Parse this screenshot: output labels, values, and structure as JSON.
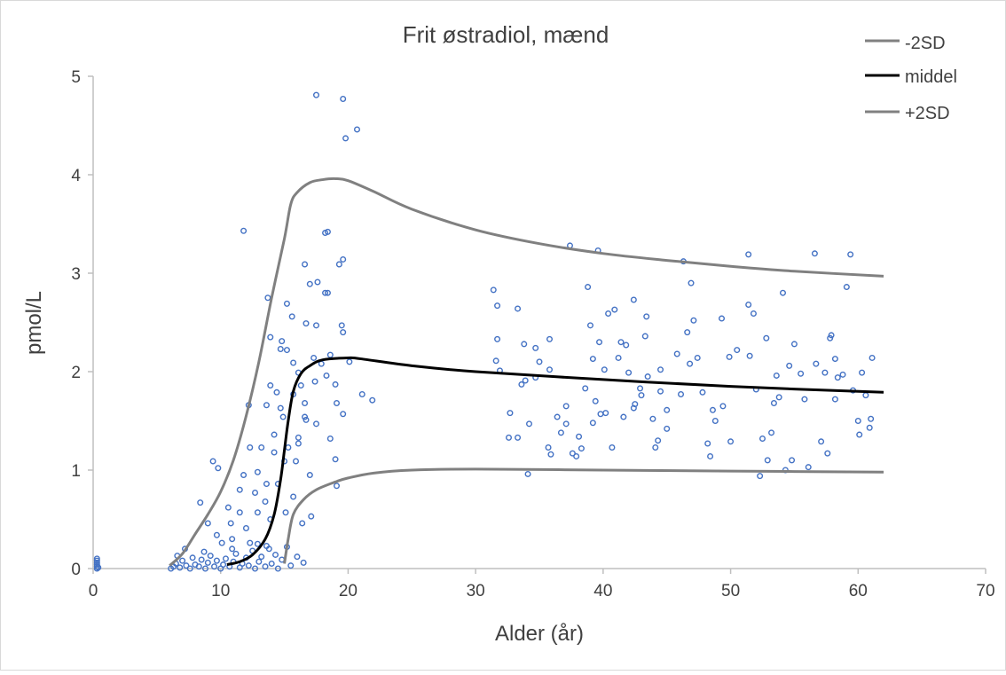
{
  "chart_data": {
    "type": "scatter",
    "title": "Frit østradiol, mænd",
    "xlabel": "Alder (år)",
    "ylabel": "pmol/L",
    "xlim": [
      0,
      70
    ],
    "ylim": [
      0,
      5
    ],
    "x_ticks": [
      "0",
      "10",
      "20",
      "30",
      "40",
      "50",
      "60",
      "70"
    ],
    "y_ticks": [
      "0",
      "1",
      "2",
      "3",
      "4",
      "5"
    ],
    "x_tick_values": [
      0,
      10,
      20,
      30,
      40,
      50,
      60,
      70
    ],
    "y_tick_values": [
      0,
      1,
      2,
      3,
      4,
      5
    ],
    "grid": false,
    "legend_placement": "top-right",
    "colors": {
      "points": "#4472C4",
      "sd": "#808080",
      "mean": "#000000",
      "axis": "#BFBFBF"
    },
    "lines": [
      {
        "name": "-2SD",
        "color": "#808080",
        "points": [
          [
            15,
            0.05
          ],
          [
            15.3,
            0.3
          ],
          [
            15.7,
            0.55
          ],
          [
            16.5,
            0.7
          ],
          [
            17.5,
            0.8
          ],
          [
            19,
            0.88
          ],
          [
            20,
            0.92
          ],
          [
            22,
            0.97
          ],
          [
            25,
            1.0
          ],
          [
            30,
            1.01
          ],
          [
            40,
            1.0
          ],
          [
            50,
            0.99
          ],
          [
            62,
            0.98
          ]
        ]
      },
      {
        "name": "middel",
        "color": "#000000",
        "points": [
          [
            10.5,
            0.04
          ],
          [
            11.5,
            0.07
          ],
          [
            12.5,
            0.14
          ],
          [
            13.5,
            0.3
          ],
          [
            14.2,
            0.55
          ],
          [
            14.7,
            0.9
          ],
          [
            15,
            1.2
          ],
          [
            15.3,
            1.5
          ],
          [
            15.7,
            1.8
          ],
          [
            16.3,
            1.98
          ],
          [
            17,
            2.06
          ],
          [
            18,
            2.12
          ],
          [
            20,
            2.14
          ],
          [
            21,
            2.13
          ],
          [
            25,
            2.06
          ],
          [
            30,
            2.0
          ],
          [
            40,
            1.92
          ],
          [
            50,
            1.85
          ],
          [
            62,
            1.79
          ]
        ]
      },
      {
        "name": "+2SD",
        "color": "#808080",
        "points": [
          [
            6,
            0.03
          ],
          [
            7,
            0.15
          ],
          [
            8,
            0.35
          ],
          [
            9,
            0.55
          ],
          [
            10,
            0.78
          ],
          [
            11,
            1.1
          ],
          [
            12,
            1.55
          ],
          [
            13,
            2.1
          ],
          [
            14,
            2.75
          ],
          [
            15,
            3.35
          ],
          [
            15.5,
            3.7
          ],
          [
            16,
            3.82
          ],
          [
            17,
            3.92
          ],
          [
            18,
            3.95
          ],
          [
            19,
            3.96
          ],
          [
            20,
            3.94
          ],
          [
            22,
            3.83
          ],
          [
            25,
            3.65
          ],
          [
            30,
            3.44
          ],
          [
            35,
            3.3
          ],
          [
            40,
            3.2
          ],
          [
            45,
            3.13
          ],
          [
            50,
            3.07
          ],
          [
            55,
            3.02
          ],
          [
            62,
            2.97
          ]
        ]
      }
    ],
    "points": [
      [
        0.3,
        0.0
      ],
      [
        0.3,
        0.02
      ],
      [
        0.3,
        0.04
      ],
      [
        0.3,
        0.06
      ],
      [
        0.3,
        0.08
      ],
      [
        0.3,
        0.1
      ],
      [
        0.4,
        0.01
      ],
      [
        6.1,
        0.0
      ],
      [
        6.3,
        0.02
      ],
      [
        6.5,
        0.05
      ],
      [
        6.8,
        0.01
      ],
      [
        7.0,
        0.08
      ],
      [
        7.3,
        0.03
      ],
      [
        7.6,
        0.0
      ],
      [
        7.8,
        0.11
      ],
      [
        8.0,
        0.04
      ],
      [
        8.3,
        0.02
      ],
      [
        8.5,
        0.09
      ],
      [
        8.8,
        0.0
      ],
      [
        9.0,
        0.06
      ],
      [
        9.2,
        0.13
      ],
      [
        9.5,
        0.02
      ],
      [
        9.7,
        0.08
      ],
      [
        10.0,
        0.0
      ],
      [
        10.2,
        0.04
      ],
      [
        10.4,
        0.1
      ],
      [
        10.7,
        0.02
      ],
      [
        11.0,
        0.07
      ],
      [
        11.2,
        0.15
      ],
      [
        11.5,
        0.01
      ],
      [
        11.7,
        0.05
      ],
      [
        12.0,
        0.11
      ],
      [
        12.2,
        0.03
      ],
      [
        12.5,
        0.18
      ],
      [
        12.7,
        0.0
      ],
      [
        13.0,
        0.07
      ],
      [
        13.2,
        0.12
      ],
      [
        13.5,
        0.02
      ],
      [
        13.8,
        0.2
      ],
      [
        14.0,
        0.05
      ],
      [
        14.3,
        0.14
      ],
      [
        14.5,
        0.0
      ],
      [
        14.8,
        0.09
      ],
      [
        15.2,
        0.22
      ],
      [
        15.5,
        0.03
      ],
      [
        16.0,
        0.12
      ],
      [
        16.5,
        0.06
      ],
      [
        7.2,
        0.2
      ],
      [
        8.7,
        0.17
      ],
      [
        6.6,
        0.13
      ],
      [
        10.9,
        0.2
      ],
      [
        12.9,
        0.25
      ],
      [
        17.5,
        4.81
      ],
      [
        19.6,
        4.77
      ],
      [
        19.8,
        4.37
      ],
      [
        20.7,
        4.46
      ],
      [
        11.8,
        3.43
      ],
      [
        18.2,
        3.41
      ],
      [
        18.4,
        3.42
      ],
      [
        19.6,
        3.14
      ],
      [
        19.3,
        3.09
      ],
      [
        16.6,
        3.09
      ],
      [
        17.0,
        2.89
      ],
      [
        17.6,
        2.91
      ],
      [
        18.2,
        2.8
      ],
      [
        18.4,
        2.8
      ],
      [
        13.7,
        2.75
      ],
      [
        15.2,
        2.69
      ],
      [
        15.6,
        2.56
      ],
      [
        16.7,
        2.49
      ],
      [
        17.5,
        2.47
      ],
      [
        19.5,
        2.47
      ],
      [
        19.6,
        2.4
      ],
      [
        13.9,
        2.35
      ],
      [
        14.8,
        2.31
      ],
      [
        15.2,
        2.22
      ],
      [
        14.7,
        2.23
      ],
      [
        15.7,
        2.09
      ],
      [
        17.3,
        2.14
      ],
      [
        20.1,
        2.1
      ],
      [
        18.3,
        1.96
      ],
      [
        19.0,
        1.87
      ],
      [
        13.9,
        1.86
      ],
      [
        14.4,
        1.79
      ],
      [
        15.7,
        1.77
      ],
      [
        16.6,
        1.68
      ],
      [
        19.1,
        1.68
      ],
      [
        21.1,
        1.77
      ],
      [
        21.9,
        1.71
      ],
      [
        12.2,
        1.66
      ],
      [
        13.6,
        1.66
      ],
      [
        14.7,
        1.63
      ],
      [
        19.6,
        1.57
      ],
      [
        16.7,
        1.51
      ],
      [
        17.5,
        1.47
      ],
      [
        14.2,
        1.36
      ],
      [
        16.1,
        1.33
      ],
      [
        18.6,
        1.32
      ],
      [
        12.3,
        1.23
      ],
      [
        13.2,
        1.23
      ],
      [
        14.2,
        1.18
      ],
      [
        9.4,
        1.09
      ],
      [
        9.8,
        1.02
      ],
      [
        19.0,
        1.11
      ],
      [
        17.0,
        0.95
      ],
      [
        19.1,
        0.84
      ],
      [
        11.8,
        0.95
      ],
      [
        12.9,
        0.98
      ],
      [
        13.6,
        0.86
      ],
      [
        11.5,
        0.8
      ],
      [
        12.7,
        0.77
      ],
      [
        13.5,
        0.68
      ],
      [
        8.4,
        0.67
      ],
      [
        10.6,
        0.62
      ],
      [
        11.5,
        0.57
      ],
      [
        12.9,
        0.57
      ],
      [
        13.9,
        0.5
      ],
      [
        10.8,
        0.46
      ],
      [
        9.0,
        0.46
      ],
      [
        12.0,
        0.41
      ],
      [
        9.7,
        0.34
      ],
      [
        10.9,
        0.3
      ],
      [
        10.1,
        0.26
      ],
      [
        12.3,
        0.26
      ],
      [
        13.6,
        0.23
      ],
      [
        15.1,
        0.57
      ],
      [
        15.7,
        0.73
      ],
      [
        16.4,
        0.46
      ],
      [
        17.1,
        0.53
      ],
      [
        15.9,
        1.09
      ],
      [
        16.1,
        1.27
      ],
      [
        16.6,
        1.54
      ],
      [
        16.3,
        1.86
      ],
      [
        16.1,
        1.99
      ],
      [
        17.4,
        1.9
      ],
      [
        17.9,
        2.08
      ],
      [
        18.6,
        2.17
      ],
      [
        14.9,
        1.54
      ],
      [
        15.0,
        1.09
      ],
      [
        14.5,
        0.86
      ],
      [
        15.3,
        1.23
      ],
      [
        31.4,
        2.83
      ],
      [
        31.7,
        2.67
      ],
      [
        31.7,
        2.33
      ],
      [
        31.6,
        2.11
      ],
      [
        31.9,
        2.01
      ],
      [
        32.7,
        1.58
      ],
      [
        32.6,
        1.33
      ],
      [
        33.3,
        1.33
      ],
      [
        33.3,
        2.64
      ],
      [
        33.8,
        2.28
      ],
      [
        33.6,
        1.87
      ],
      [
        33.9,
        1.91
      ],
      [
        34.2,
        1.47
      ],
      [
        34.1,
        0.96
      ],
      [
        34.7,
        2.24
      ],
      [
        35.0,
        2.1
      ],
      [
        34.7,
        1.94
      ],
      [
        35.8,
        2.02
      ],
      [
        35.8,
        2.33
      ],
      [
        35.7,
        1.23
      ],
      [
        35.9,
        1.16
      ],
      [
        36.4,
        1.54
      ],
      [
        36.7,
        1.38
      ],
      [
        37.1,
        1.65
      ],
      [
        37.1,
        1.47
      ],
      [
        37.4,
        3.28
      ],
      [
        37.6,
        1.17
      ],
      [
        37.9,
        1.14
      ],
      [
        38.1,
        1.34
      ],
      [
        38.3,
        1.22
      ],
      [
        38.6,
        1.83
      ],
      [
        38.8,
        2.86
      ],
      [
        39.0,
        2.47
      ],
      [
        39.2,
        2.13
      ],
      [
        39.2,
        1.48
      ],
      [
        39.4,
        1.7
      ],
      [
        39.6,
        3.23
      ],
      [
        39.8,
        1.57
      ],
      [
        39.7,
        2.3
      ],
      [
        40.1,
        2.02
      ],
      [
        40.2,
        1.58
      ],
      [
        40.4,
        2.59
      ],
      [
        40.7,
        1.23
      ],
      [
        40.9,
        2.63
      ],
      [
        41.2,
        2.14
      ],
      [
        41.4,
        2.3
      ],
      [
        41.6,
        1.54
      ],
      [
        41.8,
        2.27
      ],
      [
        42.0,
        1.99
      ],
      [
        42.4,
        1.63
      ],
      [
        42.5,
        1.67
      ],
      [
        42.4,
        2.73
      ],
      [
        42.9,
        1.83
      ],
      [
        43.0,
        1.76
      ],
      [
        43.3,
        2.36
      ],
      [
        43.4,
        2.56
      ],
      [
        43.5,
        1.95
      ],
      [
        43.9,
        1.52
      ],
      [
        44.1,
        1.23
      ],
      [
        44.3,
        1.3
      ],
      [
        44.5,
        1.8
      ],
      [
        44.5,
        2.02
      ],
      [
        45.0,
        1.42
      ],
      [
        45.0,
        1.61
      ],
      [
        45.8,
        2.18
      ],
      [
        46.1,
        1.77
      ],
      [
        46.3,
        3.12
      ],
      [
        46.6,
        2.4
      ],
      [
        46.8,
        2.08
      ],
      [
        46.9,
        2.9
      ],
      [
        47.1,
        2.52
      ],
      [
        47.4,
        2.14
      ],
      [
        47.8,
        1.79
      ],
      [
        48.2,
        1.27
      ],
      [
        48.4,
        1.14
      ],
      [
        48.6,
        1.61
      ],
      [
        48.8,
        1.5
      ],
      [
        49.3,
        2.54
      ],
      [
        49.4,
        1.65
      ],
      [
        49.9,
        2.15
      ],
      [
        50.0,
        1.29
      ],
      [
        50.5,
        2.22
      ],
      [
        51.4,
        3.19
      ],
      [
        51.4,
        2.68
      ],
      [
        51.5,
        2.16
      ],
      [
        51.8,
        2.59
      ],
      [
        52.0,
        1.82
      ],
      [
        52.3,
        0.94
      ],
      [
        52.5,
        1.32
      ],
      [
        52.9,
        1.1
      ],
      [
        52.8,
        2.34
      ],
      [
        53.2,
        1.38
      ],
      [
        53.4,
        1.68
      ],
      [
        53.6,
        1.96
      ],
      [
        53.8,
        1.74
      ],
      [
        54.1,
        2.8
      ],
      [
        54.3,
        1.0
      ],
      [
        54.6,
        2.06
      ],
      [
        54.8,
        1.1
      ],
      [
        55.0,
        2.28
      ],
      [
        55.5,
        1.98
      ],
      [
        55.8,
        1.72
      ],
      [
        56.1,
        1.03
      ],
      [
        56.6,
        3.2
      ],
      [
        56.7,
        2.08
      ],
      [
        57.1,
        1.29
      ],
      [
        57.4,
        1.99
      ],
      [
        57.6,
        1.17
      ],
      [
        57.8,
        2.34
      ],
      [
        57.9,
        2.37
      ],
      [
        58.2,
        2.13
      ],
      [
        58.4,
        1.94
      ],
      [
        58.8,
        1.97
      ],
      [
        59.1,
        2.86
      ],
      [
        59.4,
        3.19
      ],
      [
        59.6,
        1.81
      ],
      [
        60.0,
        1.5
      ],
      [
        60.1,
        1.36
      ],
      [
        60.3,
        1.99
      ],
      [
        60.6,
        1.76
      ],
      [
        60.9,
        1.43
      ],
      [
        61.0,
        1.52
      ],
      [
        61.1,
        2.14
      ],
      [
        58.2,
        1.72
      ]
    ]
  }
}
